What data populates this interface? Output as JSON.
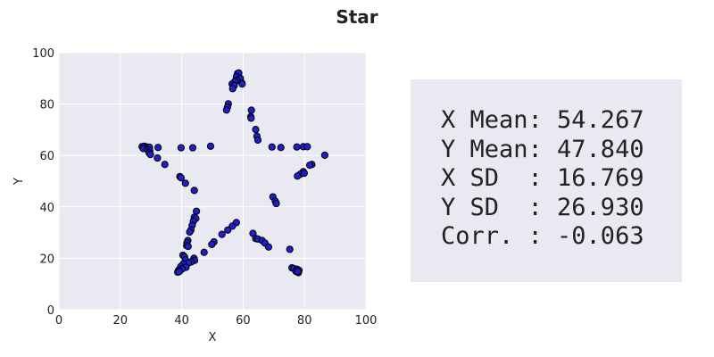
{
  "colors": {
    "plot_background": "#e9e9f1",
    "grid": "#ffffff",
    "marker_fill": "#1f1fd0",
    "marker_edge": "#000000",
    "stats_background": "#e9e9f1"
  },
  "chart_data": {
    "type": "scatter",
    "title": "Star",
    "xlabel": "X",
    "ylabel": "Y",
    "xlim": [
      0,
      100
    ],
    "ylim": [
      0,
      100
    ],
    "xticks": [
      0,
      20,
      40,
      60,
      80,
      100
    ],
    "yticks": [
      0,
      20,
      40,
      60,
      80,
      100
    ],
    "grid": true,
    "points": [
      {
        "x": 58.2,
        "y": 91.9
      },
      {
        "x": 58.6,
        "y": 92.1
      },
      {
        "x": 57.8,
        "y": 90.6
      },
      {
        "x": 59.1,
        "y": 90.0
      },
      {
        "x": 58.0,
        "y": 89.2
      },
      {
        "x": 57.3,
        "y": 88.8
      },
      {
        "x": 56.4,
        "y": 87.8
      },
      {
        "x": 59.6,
        "y": 88.2
      },
      {
        "x": 57.1,
        "y": 87.2
      },
      {
        "x": 59.7,
        "y": 87.8
      },
      {
        "x": 56.6,
        "y": 86.0
      },
      {
        "x": 55.2,
        "y": 80.1
      },
      {
        "x": 54.9,
        "y": 78.8
      },
      {
        "x": 54.6,
        "y": 77.7
      },
      {
        "x": 62.7,
        "y": 77.6
      },
      {
        "x": 62.5,
        "y": 75.1
      },
      {
        "x": 62.6,
        "y": 74.5
      },
      {
        "x": 64.1,
        "y": 70.1
      },
      {
        "x": 64.5,
        "y": 67.5
      },
      {
        "x": 64.8,
        "y": 66.0
      },
      {
        "x": 49.4,
        "y": 63.6
      },
      {
        "x": 43.6,
        "y": 63.0
      },
      {
        "x": 39.8,
        "y": 63.0
      },
      {
        "x": 32.3,
        "y": 63.1
      },
      {
        "x": 27.1,
        "y": 63.4
      },
      {
        "x": 27.8,
        "y": 63.6
      },
      {
        "x": 28.6,
        "y": 63.3
      },
      {
        "x": 29.5,
        "y": 63.2
      },
      {
        "x": 27.5,
        "y": 62.7
      },
      {
        "x": 28.9,
        "y": 62.2
      },
      {
        "x": 29.6,
        "y": 61.9
      },
      {
        "x": 29.4,
        "y": 61.0
      },
      {
        "x": 29.8,
        "y": 60.4
      },
      {
        "x": 32.1,
        "y": 59.0
      },
      {
        "x": 34.5,
        "y": 56.5
      },
      {
        "x": 69.4,
        "y": 63.3
      },
      {
        "x": 72.3,
        "y": 63.1
      },
      {
        "x": 77.5,
        "y": 63.3
      },
      {
        "x": 79.6,
        "y": 63.4
      },
      {
        "x": 80.9,
        "y": 63.4
      },
      {
        "x": 86.6,
        "y": 60.1
      },
      {
        "x": 82.4,
        "y": 56.5
      },
      {
        "x": 81.7,
        "y": 56.2
      },
      {
        "x": 79.6,
        "y": 53.7
      },
      {
        "x": 78.6,
        "y": 52.7
      },
      {
        "x": 77.7,
        "y": 52.0
      },
      {
        "x": 79.9,
        "y": 53.1
      },
      {
        "x": 39.4,
        "y": 51.8
      },
      {
        "x": 39.8,
        "y": 51.3
      },
      {
        "x": 41.2,
        "y": 49.2
      },
      {
        "x": 44.1,
        "y": 46.4
      },
      {
        "x": 69.7,
        "y": 43.9
      },
      {
        "x": 70.5,
        "y": 42.2
      },
      {
        "x": 70.8,
        "y": 41.3
      },
      {
        "x": 44.8,
        "y": 38.3
      },
      {
        "x": 44.1,
        "y": 36.0
      },
      {
        "x": 44.6,
        "y": 35.5
      },
      {
        "x": 43.8,
        "y": 34.4
      },
      {
        "x": 43.4,
        "y": 32.8
      },
      {
        "x": 43.0,
        "y": 31.0
      },
      {
        "x": 42.6,
        "y": 30.2
      },
      {
        "x": 57.8,
        "y": 33.9
      },
      {
        "x": 56.5,
        "y": 32.5
      },
      {
        "x": 55.0,
        "y": 31.0
      },
      {
        "x": 53.1,
        "y": 29.3
      },
      {
        "x": 63.2,
        "y": 29.7
      },
      {
        "x": 64.1,
        "y": 27.7
      },
      {
        "x": 64.8,
        "y": 27.5
      },
      {
        "x": 66.2,
        "y": 26.9
      },
      {
        "x": 67.1,
        "y": 25.9
      },
      {
        "x": 68.3,
        "y": 24.4
      },
      {
        "x": 50.5,
        "y": 26.4
      },
      {
        "x": 49.8,
        "y": 25.4
      },
      {
        "x": 47.3,
        "y": 22.3
      },
      {
        "x": 42.0,
        "y": 26.9
      },
      {
        "x": 41.7,
        "y": 26.0
      },
      {
        "x": 41.6,
        "y": 24.9
      },
      {
        "x": 42.1,
        "y": 24.6
      },
      {
        "x": 75.2,
        "y": 23.5
      },
      {
        "x": 40.4,
        "y": 21.2
      },
      {
        "x": 40.9,
        "y": 20.6
      },
      {
        "x": 41.2,
        "y": 19.4
      },
      {
        "x": 44.0,
        "y": 20.0
      },
      {
        "x": 44.2,
        "y": 19.2
      },
      {
        "x": 43.1,
        "y": 18.6
      },
      {
        "x": 42.2,
        "y": 18.2
      },
      {
        "x": 40.5,
        "y": 17.8
      },
      {
        "x": 39.7,
        "y": 16.8
      },
      {
        "x": 41.4,
        "y": 16.5
      },
      {
        "x": 40.1,
        "y": 15.8
      },
      {
        "x": 39.0,
        "y": 15.4
      },
      {
        "x": 38.7,
        "y": 14.6
      },
      {
        "x": 39.2,
        "y": 14.8
      },
      {
        "x": 75.9,
        "y": 16.3
      },
      {
        "x": 76.5,
        "y": 16.0
      },
      {
        "x": 77.6,
        "y": 15.7
      },
      {
        "x": 78.2,
        "y": 15.3
      },
      {
        "x": 77.2,
        "y": 14.9
      },
      {
        "x": 78.0,
        "y": 14.4
      },
      {
        "x": 77.8,
        "y": 14.9
      }
    ]
  },
  "stats": {
    "lines": [
      "X Mean: 54.267",
      "Y Mean: 47.840",
      "X SD  : 16.769",
      "Y SD  : 26.930",
      "Corr. : -0.063"
    ]
  }
}
